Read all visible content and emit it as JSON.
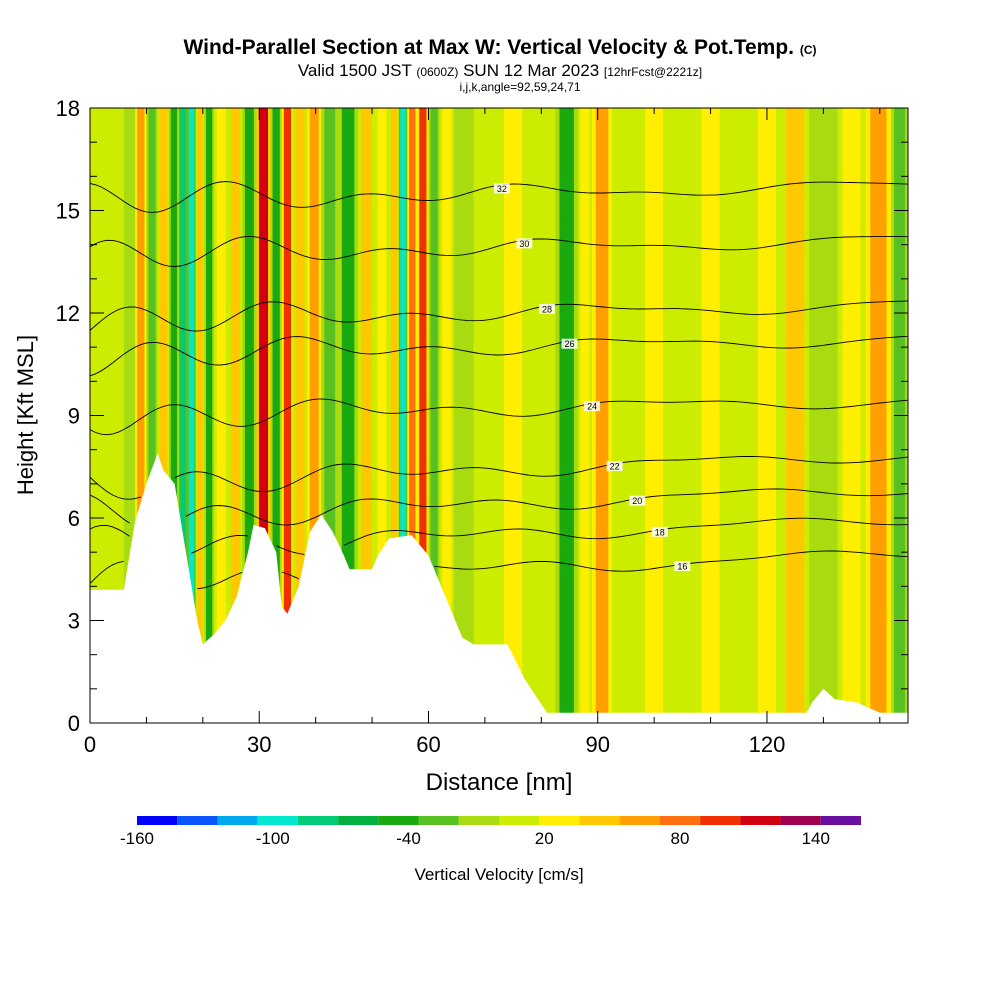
{
  "title": {
    "main": "Wind-Parallel Section at Max W: Vertical Velocity & Pot.Temp.",
    "copyright": "(C)",
    "valid_prefix": "Valid 1500 JST",
    "valid_utc": "(0600Z)",
    "valid_date": "SUN 12 Mar 2023",
    "forecast": "[12hrFcst@2221z]",
    "indices": "i,j,k,angle=92,59,24,71"
  },
  "chart_data": {
    "type": "heatmap",
    "xlabel": "Distance [nm]",
    "ylabel": "Height [Kft MSL]",
    "xlim": [
      0,
      145
    ],
    "ylim": [
      0,
      18
    ],
    "x_ticks": [
      "0",
      "30",
      "60",
      "90",
      "120"
    ],
    "y_ticks": [
      "0",
      "3",
      "6",
      "9",
      "12",
      "15",
      "18"
    ],
    "x_tick_values": [
      0,
      30,
      60,
      90,
      120
    ],
    "y_tick_values": [
      0,
      3,
      6,
      9,
      12,
      15,
      18
    ],
    "colorbar": {
      "label": "Vertical Velocity [cm/s]",
      "range": [
        -160,
        160
      ],
      "tick_labels": [
        "-160",
        "-100",
        "-40",
        "20",
        "80",
        "140"
      ],
      "tick_values": [
        -160,
        -100,
        -40,
        20,
        80,
        140
      ],
      "colors": [
        "#0000ff",
        "#0a55ff",
        "#00a8f0",
        "#00e8d0",
        "#00cc78",
        "#00b040",
        "#1aaa10",
        "#58c020",
        "#a8dc10",
        "#ccec00",
        "#ffee00",
        "#ffc800",
        "#ffa000",
        "#ff7010",
        "#f03000",
        "#d00010",
        "#a00050",
        "#6a10a0"
      ]
    },
    "contour_field": "Potential temperature (degC)",
    "contour_labels": [
      "16",
      "18",
      "20",
      "22",
      "24",
      "26",
      "28",
      "30",
      "32"
    ],
    "potential_temperature_profile": [
      {
        "level": 16,
        "height": 4.5
      },
      {
        "level": 18,
        "height": 5.5
      },
      {
        "level": 20,
        "height": 6.4
      },
      {
        "level": 22,
        "height": 7.4
      },
      {
        "level": 24,
        "height": 9.2
      },
      {
        "level": 26,
        "height": 11.0
      },
      {
        "level": 28,
        "height": 12.0
      },
      {
        "level": 30,
        "height": 13.9
      },
      {
        "level": 32,
        "height": 15.5
      }
    ],
    "terrain_profile": [
      {
        "x": 0,
        "h": 3.9
      },
      {
        "x": 6,
        "h": 3.9
      },
      {
        "x": 8,
        "h": 5.9
      },
      {
        "x": 10,
        "h": 7.0
      },
      {
        "x": 12,
        "h": 7.9
      },
      {
        "x": 13,
        "h": 7.4
      },
      {
        "x": 15,
        "h": 7.0
      },
      {
        "x": 17,
        "h": 5.0
      },
      {
        "x": 19,
        "h": 3.0
      },
      {
        "x": 20,
        "h": 2.3
      },
      {
        "x": 22,
        "h": 2.6
      },
      {
        "x": 24,
        "h": 3.0
      },
      {
        "x": 26,
        "h": 3.7
      },
      {
        "x": 28,
        "h": 5.0
      },
      {
        "x": 29,
        "h": 5.8
      },
      {
        "x": 31,
        "h": 5.7
      },
      {
        "x": 33,
        "h": 5.0
      },
      {
        "x": 34,
        "h": 3.4
      },
      {
        "x": 35,
        "h": 3.2
      },
      {
        "x": 37,
        "h": 4.0
      },
      {
        "x": 39,
        "h": 5.6
      },
      {
        "x": 41,
        "h": 6.1
      },
      {
        "x": 43,
        "h": 5.6
      },
      {
        "x": 45,
        "h": 4.9
      },
      {
        "x": 46,
        "h": 4.5
      },
      {
        "x": 50,
        "h": 4.5
      },
      {
        "x": 51,
        "h": 4.9
      },
      {
        "x": 53,
        "h": 5.4
      },
      {
        "x": 57,
        "h": 5.5
      },
      {
        "x": 60,
        "h": 4.9
      },
      {
        "x": 63,
        "h": 3.7
      },
      {
        "x": 66,
        "h": 2.5
      },
      {
        "x": 68,
        "h": 2.3
      },
      {
        "x": 74,
        "h": 2.3
      },
      {
        "x": 77,
        "h": 1.3
      },
      {
        "x": 81,
        "h": 0.3
      },
      {
        "x": 127,
        "h": 0.3
      },
      {
        "x": 128,
        "h": 0.6
      },
      {
        "x": 130,
        "h": 1.0
      },
      {
        "x": 132,
        "h": 0.7
      },
      {
        "x": 136,
        "h": 0.6
      },
      {
        "x": 140,
        "h": 0.3
      },
      {
        "x": 145,
        "h": 0.3
      }
    ],
    "vertical_velocity_bands": [
      {
        "x": 7,
        "w": -5
      },
      {
        "x": 9,
        "w": 60
      },
      {
        "x": 11,
        "w": -30
      },
      {
        "x": 13,
        "w": 40
      },
      {
        "x": 15,
        "w": -40
      },
      {
        "x": 16.5,
        "w": -80
      },
      {
        "x": 18,
        "w": -100
      },
      {
        "x": 19.5,
        "w": 50
      },
      {
        "x": 21,
        "w": -40
      },
      {
        "x": 23,
        "w": 30
      },
      {
        "x": 26,
        "w": 50
      },
      {
        "x": 28,
        "w": -50
      },
      {
        "x": 31,
        "w": 120
      },
      {
        "x": 33,
        "w": -40
      },
      {
        "x": 35,
        "w": 90
      },
      {
        "x": 37,
        "w": 40
      },
      {
        "x": 40,
        "w": 60
      },
      {
        "x": 42,
        "w": -20
      },
      {
        "x": 46,
        "w": -40
      },
      {
        "x": 49,
        "w": 40
      },
      {
        "x": 52,
        "w": 20
      },
      {
        "x": 54,
        "w": 50
      },
      {
        "x": 55.5,
        "w": -90
      },
      {
        "x": 57,
        "w": 80
      },
      {
        "x": 59,
        "w": 100
      },
      {
        "x": 61,
        "w": -20
      },
      {
        "x": 63,
        "w": 20
      },
      {
        "x": 66,
        "w": -10
      },
      {
        "x": 70,
        "w": 10
      },
      {
        "x": 75,
        "w": 30
      },
      {
        "x": 80,
        "w": 0
      },
      {
        "x": 85,
        "w": -40
      },
      {
        "x": 88,
        "w": 20
      },
      {
        "x": 90,
        "w": 60
      },
      {
        "x": 95,
        "w": 10
      },
      {
        "x": 100,
        "w": 20
      },
      {
        "x": 105,
        "w": 10
      },
      {
        "x": 110,
        "w": 30
      },
      {
        "x": 115,
        "w": 10
      },
      {
        "x": 120,
        "w": 20
      },
      {
        "x": 125,
        "w": 50
      },
      {
        "x": 130,
        "w": -10
      },
      {
        "x": 135,
        "w": 30
      },
      {
        "x": 140,
        "w": 60
      },
      {
        "x": 144,
        "w": -20
      }
    ],
    "grid": false,
    "legend": "bottom colorbar"
  },
  "colors": {
    "background": "#ffffff",
    "terrain": "#ffffff",
    "contour": "#000000",
    "axis": "#000000"
  }
}
